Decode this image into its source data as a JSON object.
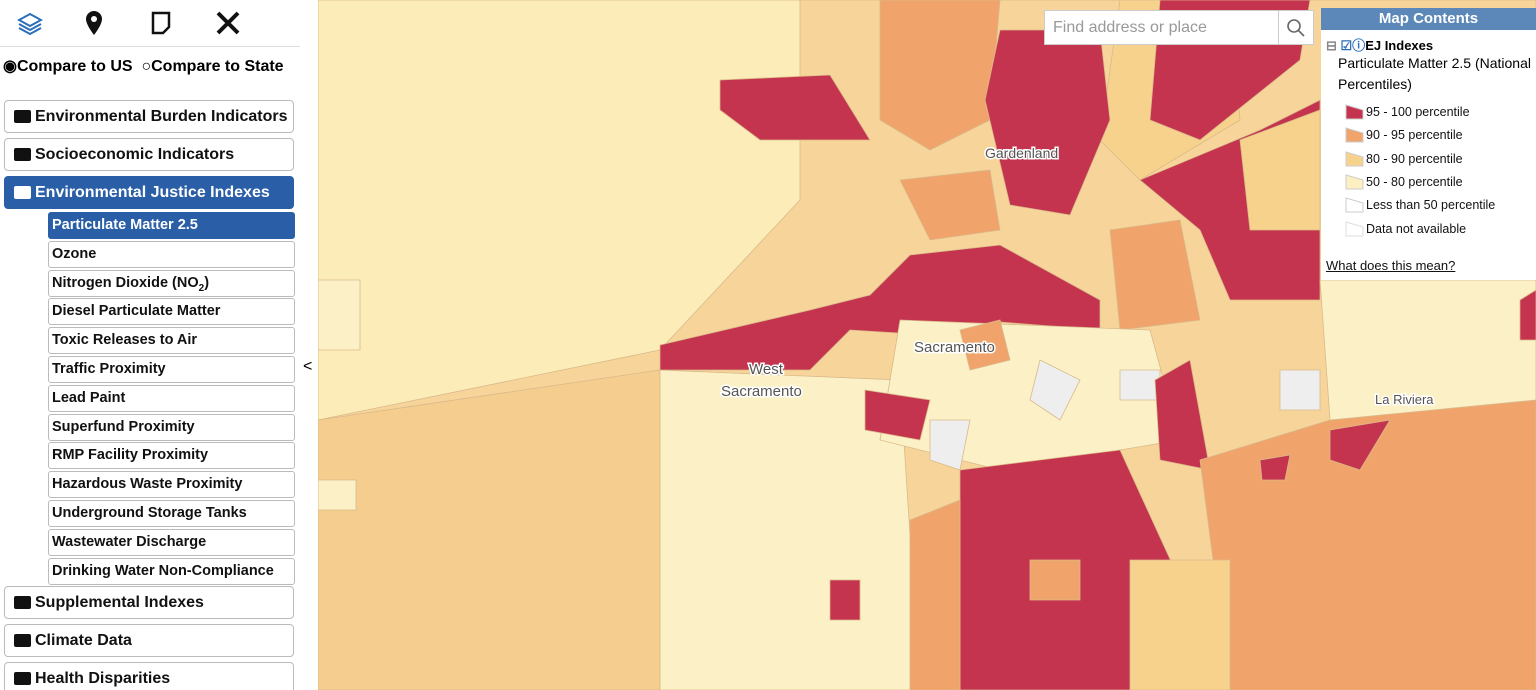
{
  "compare": {
    "options": [
      "Compare to US",
      "Compare to State"
    ]
  },
  "menu_top": [
    "Environmental Burden Indicators",
    "Socioeconomic Indicators",
    "Environmental Justice Indexes"
  ],
  "ej_items": [
    {
      "text": "Particulate Matter 2.5"
    },
    {
      "text": "Ozone"
    },
    {
      "text": "Nitrogen Dioxide (NO",
      "sub": "2",
      "tail": ")"
    },
    {
      "text": "Diesel Particulate Matter"
    },
    {
      "text": "Toxic Releases to Air"
    },
    {
      "text": "Traffic Proximity"
    },
    {
      "text": "Lead Paint"
    },
    {
      "text": "Superfund Proximity"
    },
    {
      "text": "RMP Facility Proximity"
    },
    {
      "text": "Hazardous Waste Proximity"
    },
    {
      "text": "Underground Storage Tanks"
    },
    {
      "text": "Wastewater Discharge"
    },
    {
      "text": "Drinking Water Non-Compliance"
    }
  ],
  "menu_bottom": [
    "Supplemental Indexes",
    "Climate Data",
    "Health Disparities"
  ],
  "collapse": "<",
  "search": {
    "placeholder": "Find address or place"
  },
  "map_labels": {
    "gardenland": "Gardenland",
    "sacramento": "Sacramento",
    "west": "West",
    "west2": "Sacramento",
    "riviera": "La Riviera"
  },
  "legend": {
    "title": "Map Contents",
    "layer": "EJ Indexes",
    "subtitle": "Particulate Matter 2.5 (National Percentiles)",
    "entries": [
      {
        "label": "95 - 100 percentile",
        "color": "#c4344e"
      },
      {
        "label": "90 - 95 percentile",
        "color": "#f0a46b"
      },
      {
        "label": "80 - 90 percentile",
        "color": "#f7d28c"
      },
      {
        "label": "50 - 80 percentile",
        "color": "#fcf0c2"
      },
      {
        "label": "Less than 50 percentile",
        "color": "#ffffff"
      },
      {
        "label": "Data not available",
        "color": "none"
      }
    ],
    "link": "What does this mean?"
  }
}
